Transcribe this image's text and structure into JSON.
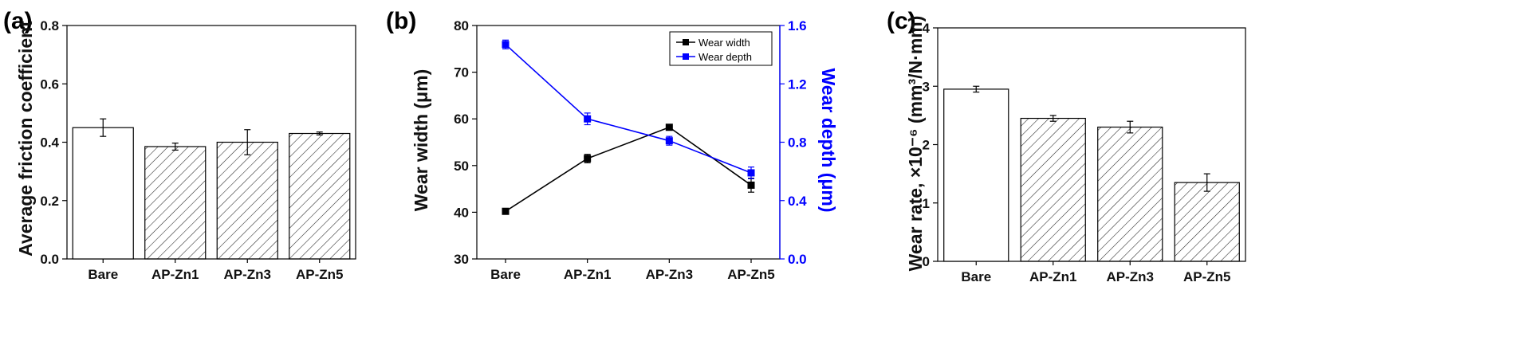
{
  "chart_data": [
    {
      "panel": "(a)",
      "type": "bar",
      "categories": [
        "Bare",
        "AP-Zn1",
        "AP-Zn3",
        "AP-Zn5"
      ],
      "values": [
        0.45,
        0.385,
        0.4,
        0.43
      ],
      "errors": [
        0.03,
        0.012,
        0.043,
        0.005
      ],
      "ylabel": "Average friction coefficient",
      "ylim": [
        0.0,
        0.8
      ],
      "yticks": [
        "0.0",
        "0.2",
        "0.4",
        "0.6",
        "0.8"
      ],
      "fills": [
        "open",
        "hatched",
        "hatched",
        "hatched"
      ]
    },
    {
      "panel": "(b)",
      "type": "line",
      "categories": [
        "Bare",
        "AP-Zn1",
        "AP-Zn3",
        "AP-Zn5"
      ],
      "ylabel_left": "Wear width (μm)",
      "ylabel_right": "Wear depth (μm)",
      "ylim_left": [
        30,
        80
      ],
      "ylim_right": [
        0.0,
        1.6
      ],
      "yticks_left": [
        "30",
        "40",
        "50",
        "60",
        "70",
        "80"
      ],
      "yticks_right": [
        "0.0",
        "0.4",
        "0.8",
        "1.2",
        "1.6"
      ],
      "series": [
        {
          "name": "Wear width",
          "axis": "left",
          "color": "#000000",
          "values": [
            40.2,
            51.5,
            58.2,
            45.8
          ],
          "errors": [
            0,
            0.9,
            0.4,
            1.5
          ]
        },
        {
          "name": "Wear depth",
          "axis": "right",
          "color": "#0000ff",
          "values": [
            1.47,
            0.96,
            0.81,
            0.59
          ],
          "errors": [
            0.03,
            0.04,
            0.03,
            0.04
          ]
        }
      ]
    },
    {
      "panel": "(c)",
      "type": "bar",
      "categories": [
        "Bare",
        "AP-Zn1",
        "AP-Zn3",
        "AP-Zn5"
      ],
      "values": [
        2.95,
        2.45,
        2.3,
        1.35
      ],
      "errors": [
        0.05,
        0.05,
        0.1,
        0.15
      ],
      "ylabel": "Wear rate, ×10⁻⁶ (mm³/N·mm)",
      "ylim": [
        0,
        4
      ],
      "yticks": [
        "0",
        "1",
        "2",
        "3",
        "4"
      ],
      "fills": [
        "open",
        "hatched",
        "hatched",
        "hatched"
      ]
    }
  ]
}
